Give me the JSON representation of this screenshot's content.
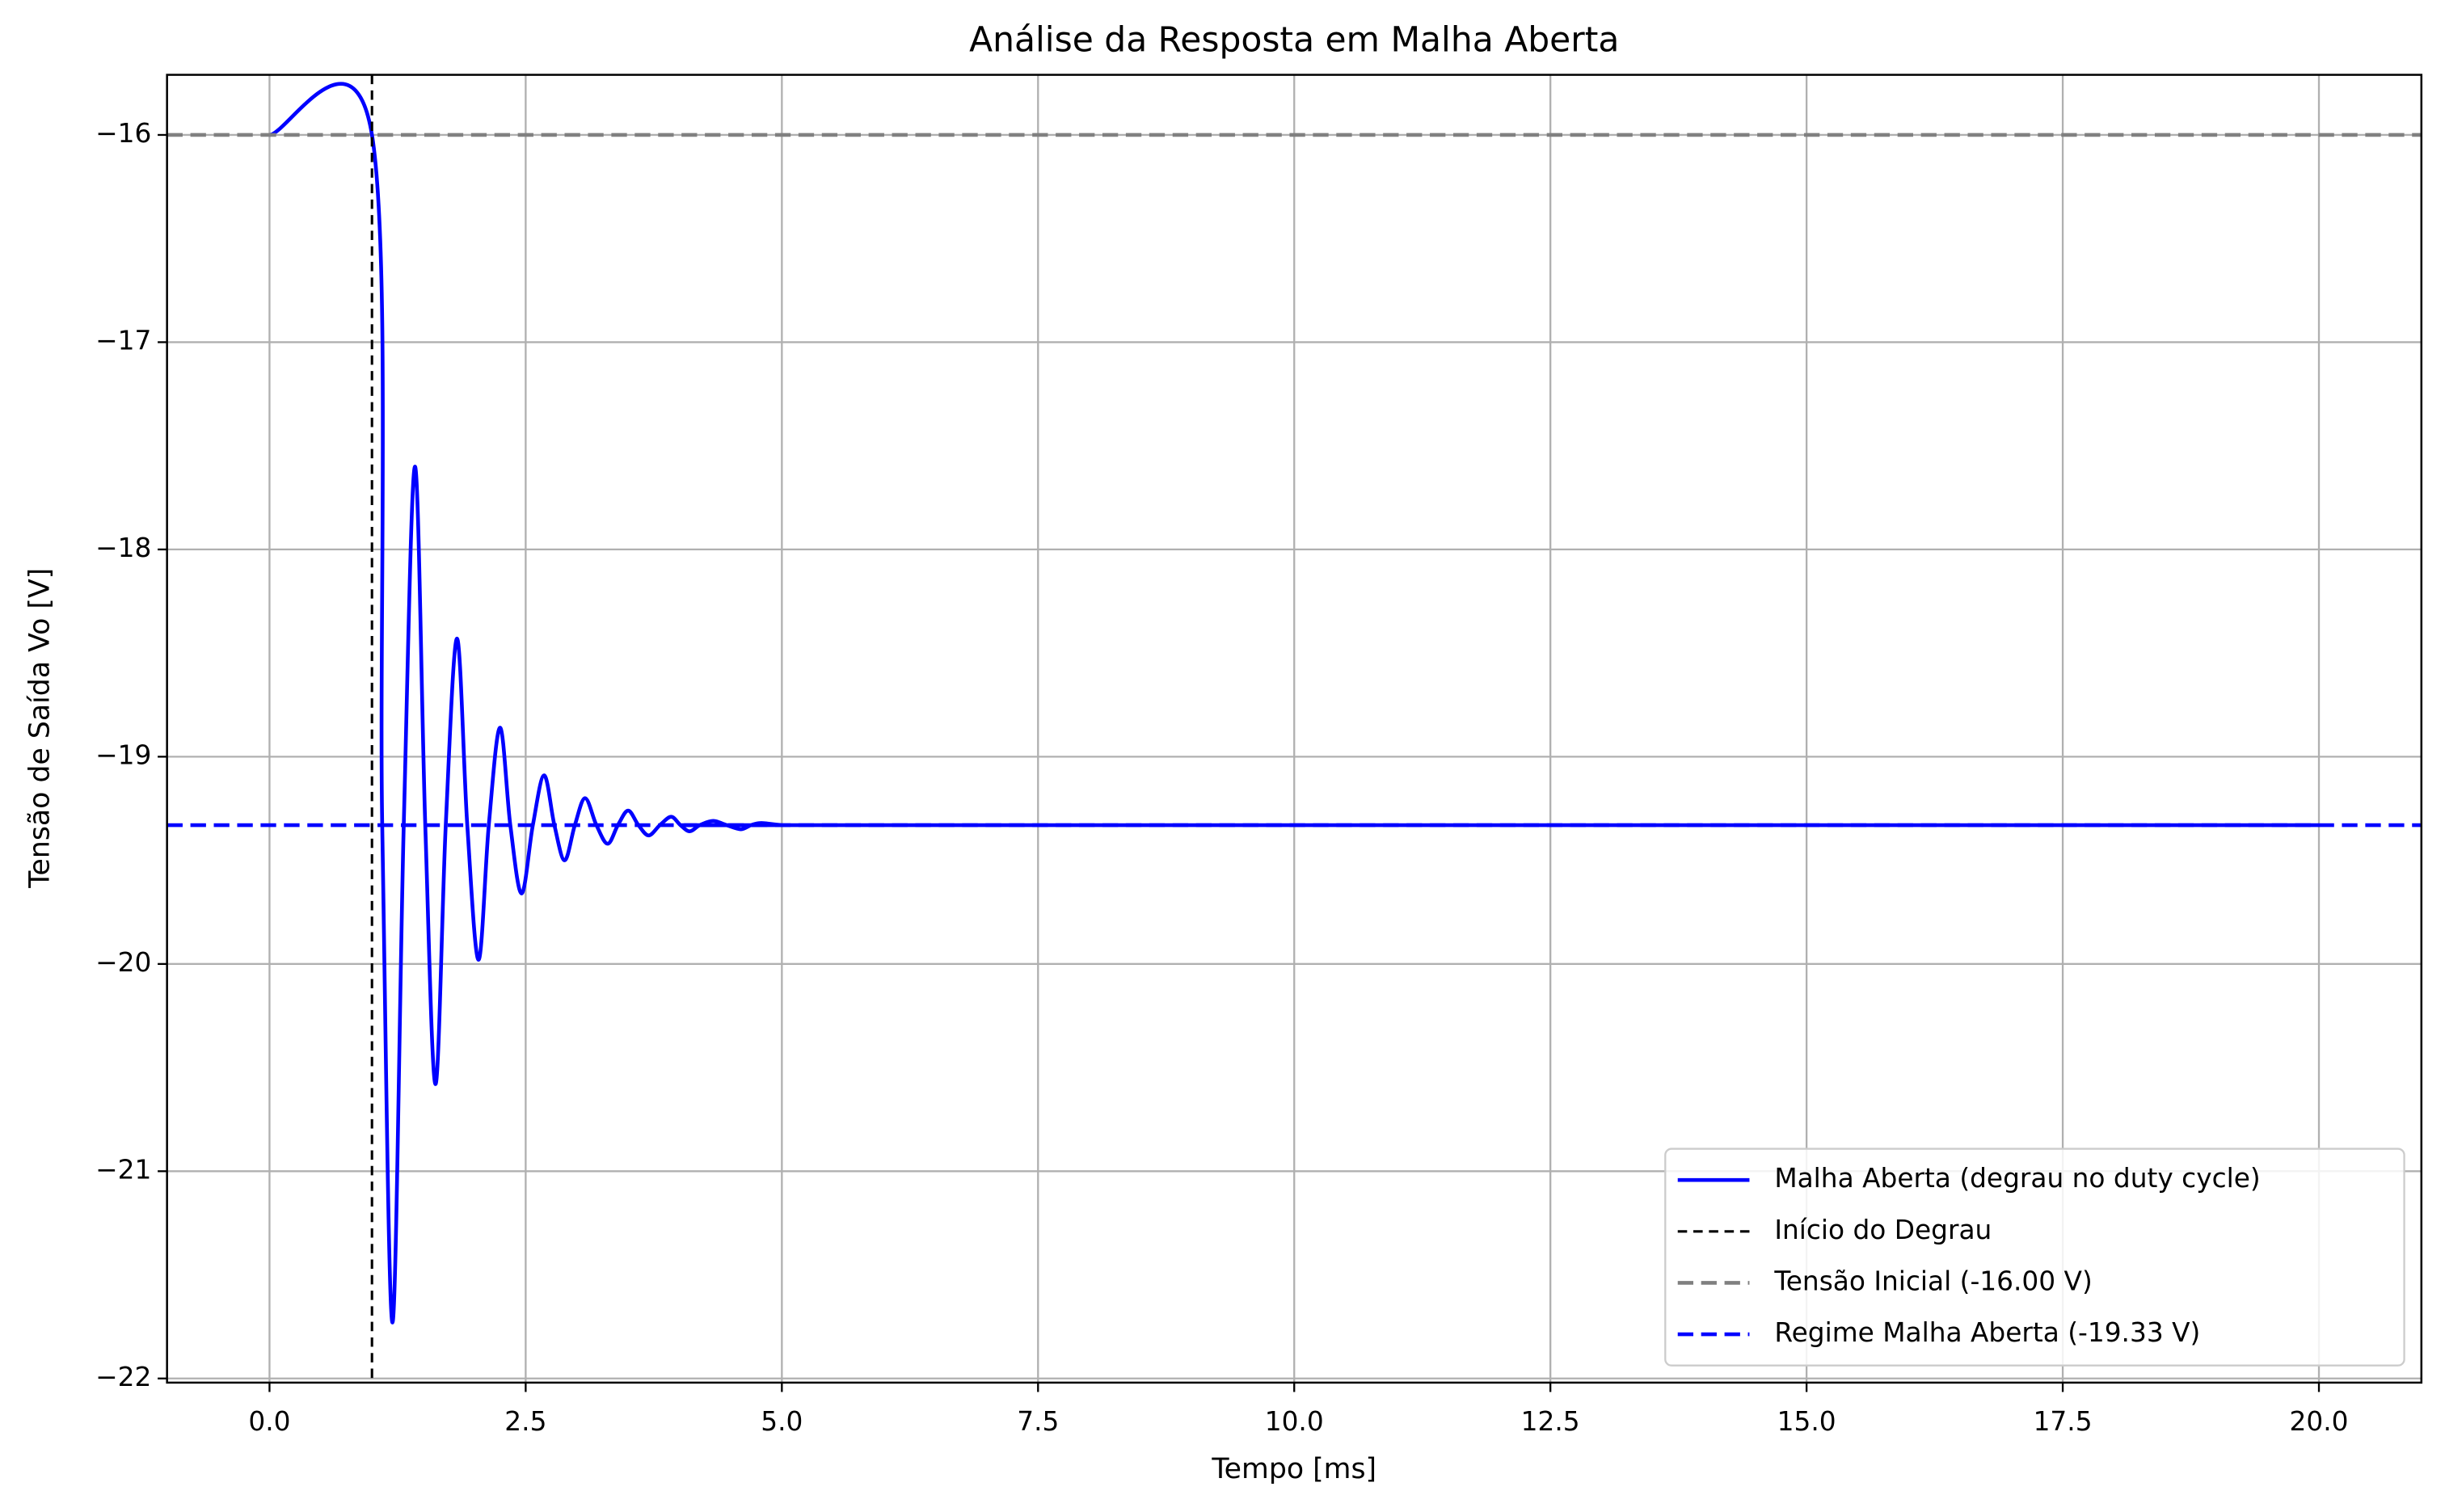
{
  "chart_data": {
    "type": "line",
    "title": "Análise da Resposta em Malha Aberta",
    "x_label": "Tempo [ms]",
    "y_label": "Tensão de Saída Vo [V]",
    "xlim": [
      -1.0,
      21.0
    ],
    "ylim": [
      -22.02,
      -15.71
    ],
    "xticks": [
      {
        "value": 0,
        "label": "0.0"
      },
      2.5,
      {
        "value": 5,
        "label": "5.0"
      },
      7.5,
      {
        "value": 10,
        "label": "10.0"
      },
      12.5,
      {
        "value": 15,
        "label": "15.0"
      },
      17.5,
      {
        "value": 20,
        "label": "20.0"
      }
    ],
    "yticks": [
      {
        "value": -22,
        "label": "−22"
      },
      {
        "value": -21,
        "label": "−21"
      },
      {
        "value": -20,
        "label": "−20"
      },
      {
        "value": -19,
        "label": "−19"
      },
      {
        "value": -18,
        "label": "−18"
      },
      {
        "value": -17,
        "label": "−17"
      },
      {
        "value": -16,
        "label": "−16"
      }
    ],
    "grid": true,
    "legend_location": "lower right",
    "series": [
      {
        "name": "Malha Aberta (degrau no duty cycle)",
        "color": "#0000ff",
        "x": [
          0,
          1,
          1.1,
          1.2,
          1.31,
          1.42,
          1.52,
          1.62,
          1.72,
          1.83,
          1.93,
          2.04,
          2.14,
          2.25,
          2.35,
          2.46,
          2.57,
          2.68,
          2.78,
          2.88,
          2.98,
          3.08,
          3.19,
          3.3,
          3.4,
          3.5,
          3.6,
          3.7,
          3.81,
          3.92,
          4.01,
          4.1,
          4.2,
          4.33,
          4.46,
          4.6,
          4.7,
          4.8,
          5.0,
          5.2,
          20
        ],
        "values": [
          -16,
          -16,
          -19.33,
          -21.73,
          -19.33,
          -17.6,
          -19.33,
          -20.58,
          -19.33,
          -18.43,
          -19.33,
          -19.98,
          -19.33,
          -18.86,
          -19.33,
          -19.66,
          -19.33,
          -19.09,
          -19.33,
          -19.5,
          -19.33,
          -19.2,
          -19.33,
          -19.42,
          -19.33,
          -19.26,
          -19.33,
          -19.38,
          -19.33,
          -19.29,
          -19.33,
          -19.36,
          -19.33,
          -19.31,
          -19.33,
          -19.35,
          -19.33,
          -19.32,
          -19.33,
          -19.33,
          -19.33
        ]
      }
    ],
    "reference_lines": [
      {
        "name": "Início do Degrau",
        "axis": "x",
        "value": 1,
        "color": "#000000",
        "dash": "short"
      },
      {
        "name": "Tensão Inicial (-16.00 V)",
        "axis": "y",
        "value": -16,
        "color": "#808080",
        "dash": "long"
      },
      {
        "name": "Regime Malha Aberta (-19.33 V)",
        "axis": "y",
        "value": -19.33,
        "color": "#0000ff",
        "dash": "long"
      }
    ]
  }
}
